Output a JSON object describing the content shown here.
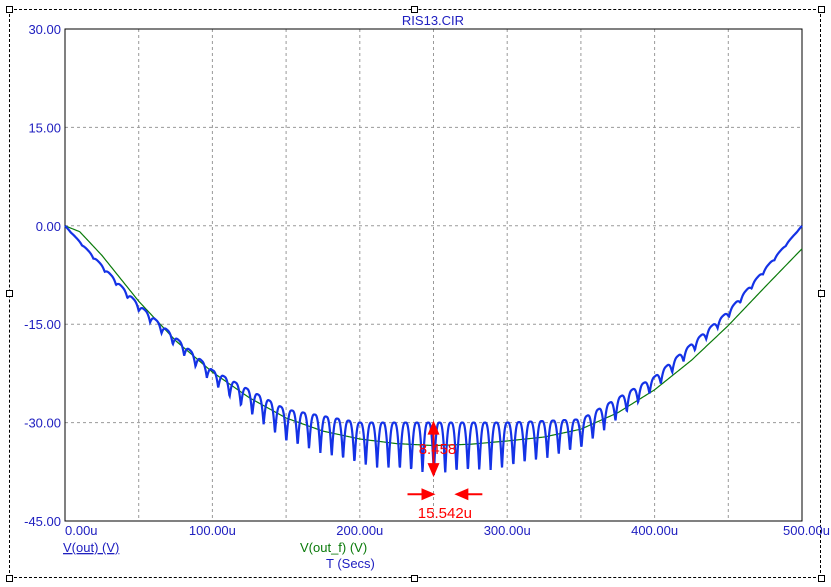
{
  "window": {
    "title": "RIS13.CIR"
  },
  "colors": {
    "axis_text": "#2020c0",
    "grid": "#9a9a9a",
    "v_out": "#1432e6",
    "v_out_f": "#0a7a0a",
    "annotation": "#ff0000",
    "frame": "#000000"
  },
  "chart_data": {
    "type": "line",
    "title": "RIS13.CIR",
    "xlabel": "T (Secs)",
    "ylabel": "",
    "xlim": [
      0,
      500
    ],
    "ylim": [
      -45,
      30
    ],
    "x_unit": "u",
    "x_ticks": [
      0,
      100,
      200,
      300,
      400,
      500
    ],
    "x_tick_labels": [
      "0.00u",
      "100.00u",
      "200.00u",
      "300.00u",
      "400.00u",
      "500.00u"
    ],
    "y_ticks": [
      30,
      15,
      0,
      -15,
      -30,
      -45
    ],
    "y_tick_labels": [
      "30.00",
      "15.00",
      "0.00",
      "-15.00",
      "-30.00",
      "-45.00"
    ],
    "grid": true,
    "series": [
      {
        "name": "V(out) (V)",
        "description_values": "rectified-style ripple riding on a half-cycle sag",
        "x": [
          0,
          50,
          100,
          150,
          200,
          250,
          300,
          350,
          400,
          450,
          500
        ],
        "envelope_top": [
          0,
          -12,
          -22,
          -28,
          -30,
          -30,
          -30,
          -29.5,
          -23,
          -13,
          0
        ],
        "envelope_bottom": [
          0,
          -13,
          -24,
          -33,
          -36.5,
          -38,
          -37,
          -34,
          -25,
          -14,
          0
        ],
        "ripple_period": 7.7
      },
      {
        "name": "V(out_f) (V)",
        "x": [
          0,
          10,
          25,
          50,
          75,
          100,
          125,
          150,
          175,
          200,
          225,
          250,
          275,
          300,
          325,
          350,
          375,
          400,
          425,
          450,
          475,
          500
        ],
        "values": [
          0,
          -0.9,
          -4.5,
          -11.5,
          -17.5,
          -22.3,
          -26.2,
          -29.3,
          -31.3,
          -32.5,
          -33.2,
          -33.5,
          -33.3,
          -32.8,
          -32.2,
          -31.0,
          -28.5,
          -25.0,
          -20.5,
          -15.2,
          -9.3,
          -3.5
        ]
      }
    ],
    "annotations": [
      {
        "type": "vertical-measure",
        "x": 250,
        "y_from": -30,
        "y_to": -38,
        "label": "8.458"
      },
      {
        "type": "horizontal-measure",
        "x_from": 250,
        "x_to": 265.5,
        "y": -40,
        "label": "15.542u"
      }
    ]
  }
}
